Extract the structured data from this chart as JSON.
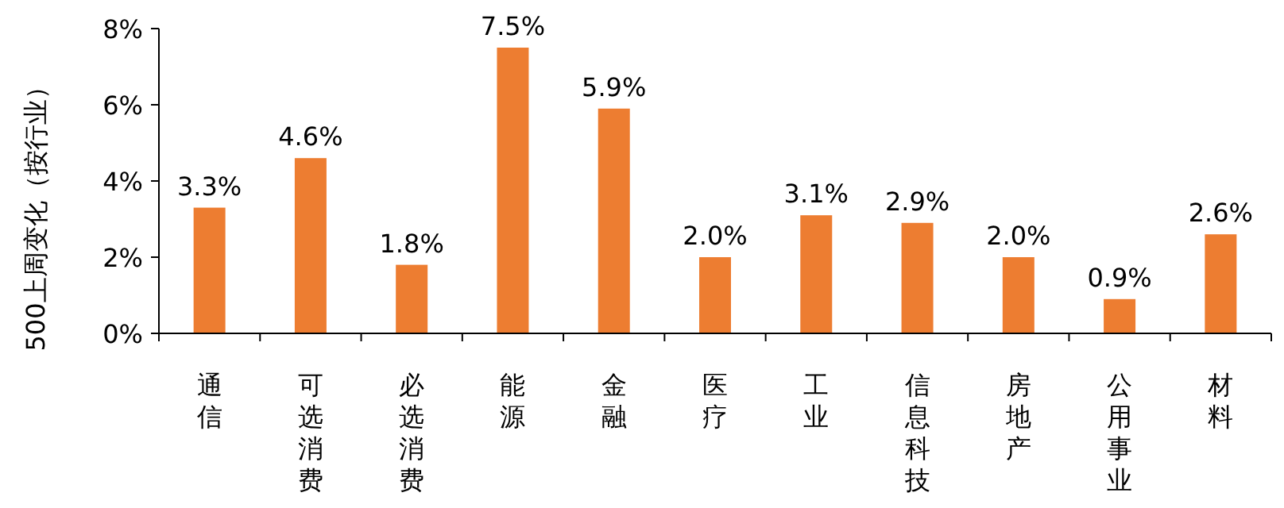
{
  "chart_data": {
    "type": "bar",
    "ylabel": "500上周变化（按行业）",
    "categories": [
      "通信",
      "可选消费",
      "必选消费",
      "能源",
      "金融",
      "医疗",
      "工业",
      "信息科技",
      "房地产",
      "公用事业",
      "材料"
    ],
    "values": [
      3.3,
      4.6,
      1.8,
      7.5,
      5.9,
      2.0,
      3.1,
      2.9,
      2.0,
      0.9,
      2.6
    ],
    "value_labels": [
      "3.3%",
      "4.6%",
      "1.8%",
      "7.5%",
      "5.9%",
      "2.0%",
      "3.1%",
      "2.9%",
      "2.0%",
      "0.9%",
      "2.6%"
    ],
    "color": "#ed7d31",
    "ylim": [
      0,
      8
    ],
    "yticks": [
      {
        "value": 0,
        "label": "0%"
      },
      {
        "value": 2,
        "label": "2%"
      },
      {
        "value": 4,
        "label": "4%"
      },
      {
        "value": 6,
        "label": "6%"
      },
      {
        "value": 8,
        "label": "8%"
      }
    ],
    "grid": false
  }
}
